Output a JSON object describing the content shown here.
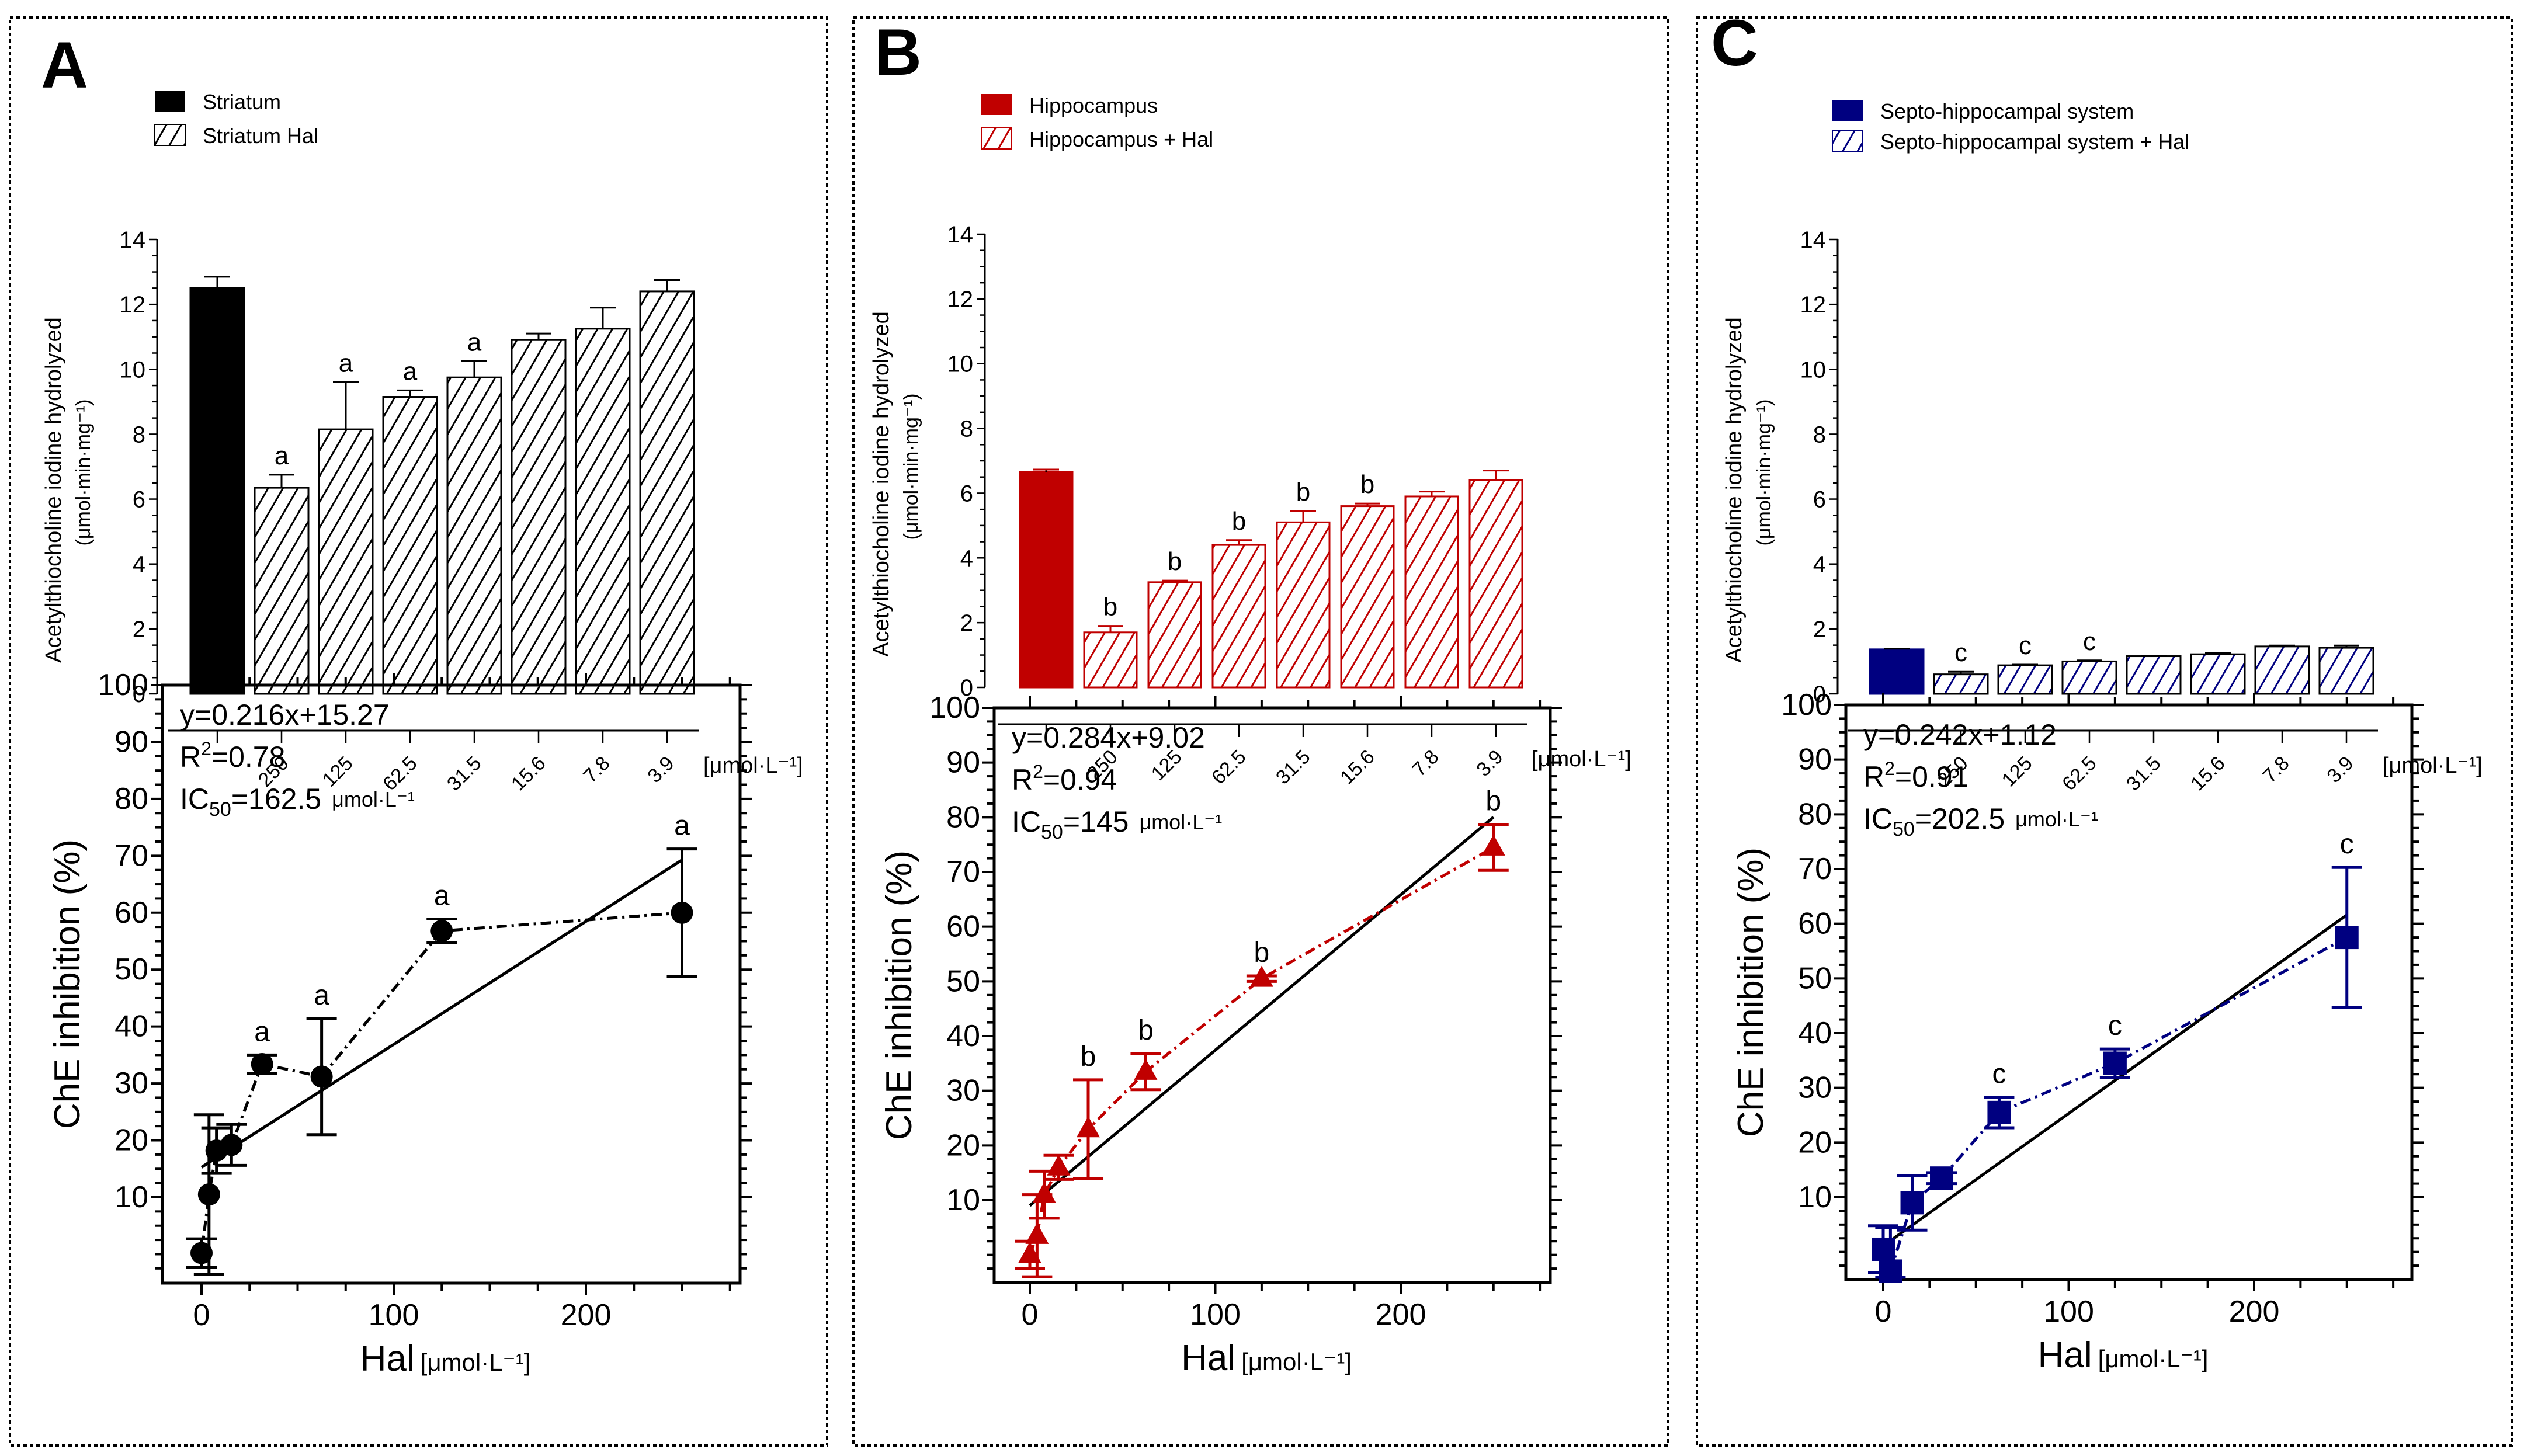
{
  "figure": {
    "panels": [
      "A",
      "B",
      "C"
    ]
  },
  "chart_data": [
    {
      "panel": "A",
      "type": "bar",
      "color": "#000000",
      "legend": [
        "Striatum",
        "Striatum Hal"
      ],
      "ylabel_line1": "Acetylthiocholine iodine hydrolyzed",
      "ylabel_line2": "(μmol·min·mg⁻¹)",
      "ylim": [
        0,
        14
      ],
      "yticks": [
        0,
        2,
        4,
        6,
        8,
        10,
        12,
        14
      ],
      "categories": [
        "",
        "250",
        "125",
        "62.5",
        "31.5",
        "15.6",
        "7.8",
        "3.9"
      ],
      "x_unit": "[μmol·L⁻¹]",
      "values": [
        12.5,
        6.35,
        8.15,
        9.15,
        9.75,
        10.9,
        11.25,
        12.4
      ],
      "errors": [
        0.35,
        0.4,
        1.45,
        0.2,
        0.5,
        0.2,
        0.65,
        0.35
      ],
      "annotations": [
        "",
        "a",
        "a",
        "a",
        "a",
        "",
        "",
        ""
      ]
    },
    {
      "panel": "A",
      "type": "scatter",
      "color": "#000000",
      "marker": "circle",
      "ylabel": "ChE inhibition (%)",
      "xlabel": "Hal",
      "xlabel_unit": "[μmol·L⁻¹]",
      "xlim": [
        -20,
        280
      ],
      "ylim": [
        -5,
        100
      ],
      "xticks": [
        0,
        100,
        200
      ],
      "yticks": [
        10,
        20,
        30,
        40,
        50,
        60,
        70,
        80,
        90,
        100
      ],
      "equation": "y=0.216x+15.27",
      "r2_label": "R",
      "r2_value": "=0.78",
      "ic50_label": "IC",
      "ic50_sub": "50",
      "ic50_value": "=162.5",
      "ic50_unit": "μmol·L⁻¹",
      "fit": {
        "slope": 0.216,
        "intercept": 15.27,
        "x_range": [
          0,
          250
        ]
      },
      "x": [
        0,
        3.9,
        7.8,
        15.6,
        31.5,
        62.5,
        125,
        250
      ],
      "y": [
        0.2,
        10.5,
        18.2,
        19.2,
        33.4,
        31.2,
        56.8,
        60.0
      ],
      "err": [
        2.5,
        14.0,
        4.0,
        3.6,
        1.6,
        10.2,
        2.1,
        11.2
      ],
      "annotations": [
        "",
        "",
        "",
        "",
        "a",
        "a",
        "a",
        "a"
      ]
    },
    {
      "panel": "B",
      "type": "bar",
      "color": "#c00000",
      "legend": [
        "Hippocampus",
        "Hippocampus + Hal"
      ],
      "ylabel_line1": "Acetylthiocholine iodine hydrolyzed",
      "ylabel_line2": "(μmol·min·mg⁻¹)",
      "ylim": [
        0,
        14
      ],
      "yticks": [
        0,
        2,
        4,
        6,
        8,
        10,
        12,
        14
      ],
      "categories": [
        "",
        "250",
        "125",
        "62.5",
        "31.5",
        "15.6",
        "7.8",
        "3.9"
      ],
      "x_unit": "[μmol·L⁻¹]",
      "values": [
        6.65,
        1.7,
        3.25,
        4.4,
        5.1,
        5.6,
        5.9,
        6.4
      ],
      "errors": [
        0.08,
        0.2,
        0.05,
        0.15,
        0.35,
        0.08,
        0.15,
        0.3
      ],
      "annotations": [
        "",
        "b",
        "b",
        "b",
        "b",
        "b",
        "",
        ""
      ]
    },
    {
      "panel": "B",
      "type": "scatter",
      "color": "#c00000",
      "marker": "triangle",
      "ylabel": "ChE inhibition (%)",
      "xlabel": "Hal",
      "xlabel_unit": "[μmol·L⁻¹]",
      "xlim": [
        -20,
        280
      ],
      "ylim": [
        -5,
        100
      ],
      "xticks": [
        0,
        100,
        200
      ],
      "yticks": [
        10,
        20,
        30,
        40,
        50,
        60,
        70,
        80,
        90,
        100
      ],
      "equation": "y=0.284x+9.02",
      "r2_label": "R",
      "r2_value": "=0.94",
      "ic50_label": "IC",
      "ic50_sub": "50",
      "ic50_value": "=145",
      "ic50_unit": "μmol·L⁻¹",
      "fit": {
        "slope": 0.284,
        "intercept": 9.02,
        "x_range": [
          0,
          250
        ]
      },
      "x": [
        0,
        3.9,
        7.8,
        15.6,
        31.5,
        62.5,
        125,
        250
      ],
      "y": [
        0.0,
        3.5,
        11.0,
        16.0,
        23.0,
        33.5,
        50.5,
        74.5
      ],
      "err": [
        2.5,
        7.5,
        4.3,
        2.2,
        9.0,
        3.3,
        0.5,
        4.2
      ],
      "annotations": [
        "",
        "",
        "",
        "",
        "b",
        "b",
        "b",
        "b"
      ]
    },
    {
      "panel": "C",
      "type": "bar",
      "color": "#000080",
      "legend": [
        "Septo-hippocampal system",
        "Septo-hippocampal system + Hal"
      ],
      "ylabel_line1": "Acetylthiocholine iodine hydrolyzed",
      "ylabel_line2": "(μmol·min·mg⁻¹)",
      "ylim": [
        0,
        14
      ],
      "yticks": [
        0,
        2,
        4,
        6,
        8,
        10,
        12,
        14
      ],
      "categories": [
        "",
        "250",
        "125",
        "62.5",
        "31.5",
        "15.6",
        "7.8",
        "3.9"
      ],
      "x_unit": "[μmol·L⁻¹]",
      "values": [
        1.37,
        0.6,
        0.88,
        1.0,
        1.16,
        1.22,
        1.46,
        1.42
      ],
      "errors": [
        0.02,
        0.08,
        0.02,
        0.03,
        0.01,
        0.03,
        0.03,
        0.07
      ],
      "annotations": [
        "",
        "c",
        "c",
        "c",
        "",
        "",
        "",
        ""
      ]
    },
    {
      "panel": "C",
      "type": "scatter",
      "color": "#000080",
      "marker": "square",
      "ylabel": "ChE inhibition (%)",
      "xlabel": "Hal",
      "xlabel_unit": "[μmol·L⁻¹]",
      "xlim": [
        -20,
        280
      ],
      "ylim": [
        -5,
        100
      ],
      "xticks": [
        0,
        100,
        200
      ],
      "yticks": [
        10,
        20,
        30,
        40,
        50,
        60,
        70,
        80,
        90,
        100
      ],
      "equation": "y=0.242x+1.12",
      "r2_label": "R",
      "r2_value": "=0.91",
      "ic50_label": "IC",
      "ic50_sub": "50",
      "ic50_value": "=202.5",
      "ic50_unit": "μmol·L⁻¹",
      "fit": {
        "slope": 0.242,
        "intercept": 1.12,
        "x_range": [
          0,
          250
        ]
      },
      "x": [
        0,
        3.9,
        15.6,
        31.5,
        62.5,
        125,
        250
      ],
      "y": [
        0.5,
        -3.5,
        9.0,
        13.5,
        25.5,
        34.5,
        57.5
      ],
      "err": [
        4.3,
        8.0,
        5.0,
        1.0,
        2.8,
        2.6,
        12.8
      ],
      "annotations": [
        "",
        "",
        "",
        "",
        "c",
        "c",
        "c"
      ]
    }
  ]
}
